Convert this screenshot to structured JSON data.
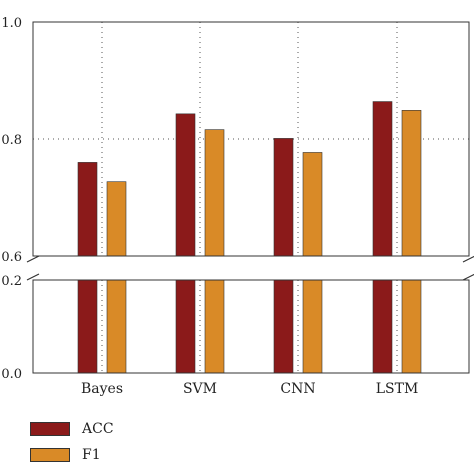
{
  "chart_data": {
    "type": "bar",
    "categories": [
      "Bayes",
      "SVM",
      "CNN",
      "LSTM"
    ],
    "series": [
      {
        "name": "ACC",
        "values": [
          0.76,
          0.843,
          0.801,
          0.864
        ],
        "color": "#8B1A1A"
      },
      {
        "name": "F1",
        "values": [
          0.727,
          0.816,
          0.777,
          0.849
        ],
        "color": "#D98A27"
      }
    ],
    "axis_break": {
      "lower_range": [
        0.0,
        0.2
      ],
      "upper_range": [
        0.6,
        1.0
      ]
    },
    "yticks": {
      "upper": [
        {
          "value": 0.6,
          "label": "0.6"
        },
        {
          "value": 0.8,
          "label": "0.8"
        },
        {
          "value": 1.0,
          "label": "1.0"
        }
      ],
      "lower": [
        {
          "value": 0.0,
          "label": "0.0"
        },
        {
          "value": 0.2,
          "label": "0.2"
        }
      ]
    },
    "grid": "dotted",
    "legend_position": "bottom-left",
    "title": "",
    "xlabel": "",
    "ylabel": ""
  }
}
